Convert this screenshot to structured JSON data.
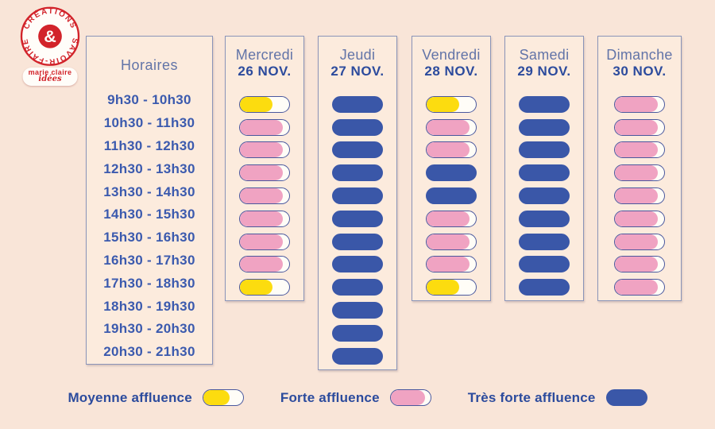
{
  "logo": {
    "arc_top": "CRÉATIONS",
    "ampersand": "&",
    "arc_bottom": "SAVOIR-FAIRE",
    "badge_title": "marie claire",
    "badge_subtitle": "idées",
    "red": "#d2232a"
  },
  "schedule": {
    "hours_title": "Horaires",
    "time_slots": [
      "9h30 - 10h30",
      "10h30 - 11h30",
      "11h30 - 12h30",
      "12h30 - 13h30",
      "13h30 - 14h30",
      "14h30 - 15h30",
      "15h30 - 16h30",
      "16h30 - 17h30",
      "17h30 - 18h30",
      "18h30 - 19h30",
      "19h30 - 20h30",
      "20h30 - 21h30"
    ],
    "days": [
      {
        "name": "Mercredi",
        "date": "26 NOV.",
        "levels": [
          "moyenne",
          "forte",
          "forte",
          "forte",
          "forte",
          "forte",
          "forte",
          "forte",
          "moyenne"
        ]
      },
      {
        "name": "Jeudi",
        "date": "27 NOV.",
        "levels": [
          "tres_forte",
          "tres_forte",
          "tres_forte",
          "tres_forte",
          "tres_forte",
          "tres_forte",
          "tres_forte",
          "tres_forte",
          "tres_forte",
          "tres_forte",
          "tres_forte",
          "tres_forte"
        ]
      },
      {
        "name": "Vendredi",
        "date": "28 NOV.",
        "levels": [
          "moyenne",
          "forte",
          "forte",
          "tres_forte",
          "tres_forte",
          "forte",
          "forte",
          "forte",
          "moyenne"
        ]
      },
      {
        "name": "Samedi",
        "date": "29 NOV.",
        "levels": [
          "tres_forte",
          "tres_forte",
          "tres_forte",
          "tres_forte",
          "tres_forte",
          "tres_forte",
          "tres_forte",
          "tres_forte",
          "tres_forte"
        ]
      },
      {
        "name": "Dimanche",
        "date": "30 NOV.",
        "levels": [
          "forte",
          "forte",
          "forte",
          "forte",
          "forte",
          "forte",
          "forte",
          "forte",
          "forte"
        ]
      }
    ]
  },
  "levels": {
    "moyenne": {
      "color": "#fcdc0f",
      "fill_pct": 66
    },
    "forte": {
      "color": "#f0a3c2",
      "fill_pct": 87
    },
    "tres_forte": {
      "color": "#3a57a8",
      "fill_pct": 100
    }
  },
  "legend": {
    "items": [
      {
        "label": "Moyenne affluence",
        "level": "moyenne"
      },
      {
        "label": "Forte affluence",
        "level": "forte"
      },
      {
        "label": "Très forte affluence",
        "level": "tres_forte"
      }
    ]
  },
  "colors": {
    "background": "#f9e5d8",
    "panel_background": "#fcebdd",
    "panel_border": "#8a94b8",
    "navy": "#2c4b9d",
    "slate": "#6274a8"
  },
  "chart_data": {
    "type": "heatmap",
    "title": "Affluence par créneau horaire",
    "x_categories": [
      "Mercredi 26 NOV.",
      "Jeudi 27 NOV.",
      "Vendredi 28 NOV.",
      "Samedi 29 NOV.",
      "Dimanche 30 NOV."
    ],
    "y_categories": [
      "9h30 - 10h30",
      "10h30 - 11h30",
      "11h30 - 12h30",
      "12h30 - 13h30",
      "13h30 - 14h30",
      "14h30 - 15h30",
      "15h30 - 16h30",
      "16h30 - 17h30",
      "17h30 - 18h30",
      "18h30 - 19h30",
      "19h30 - 20h30",
      "20h30 - 21h30"
    ],
    "legend_entries": [
      "Moyenne affluence",
      "Forte affluence",
      "Très forte affluence"
    ],
    "legend_position": "bottom",
    "values_by_day": {
      "Mercredi 26 NOV.": [
        "moyenne",
        "forte",
        "forte",
        "forte",
        "forte",
        "forte",
        "forte",
        "forte",
        "moyenne",
        null,
        null,
        null
      ],
      "Jeudi 27 NOV.": [
        "tres_forte",
        "tres_forte",
        "tres_forte",
        "tres_forte",
        "tres_forte",
        "tres_forte",
        "tres_forte",
        "tres_forte",
        "tres_forte",
        "tres_forte",
        "tres_forte",
        "tres_forte"
      ],
      "Vendredi 28 NOV.": [
        "moyenne",
        "forte",
        "forte",
        "tres_forte",
        "tres_forte",
        "forte",
        "forte",
        "forte",
        "moyenne",
        null,
        null,
        null
      ],
      "Samedi 29 NOV.": [
        "tres_forte",
        "tres_forte",
        "tres_forte",
        "tres_forte",
        "tres_forte",
        "tres_forte",
        "tres_forte",
        "tres_forte",
        "tres_forte",
        null,
        null,
        null
      ],
      "Dimanche 30 NOV.": [
        "forte",
        "forte",
        "forte",
        "forte",
        "forte",
        "forte",
        "forte",
        "forte",
        "forte",
        null,
        null,
        null
      ]
    }
  }
}
